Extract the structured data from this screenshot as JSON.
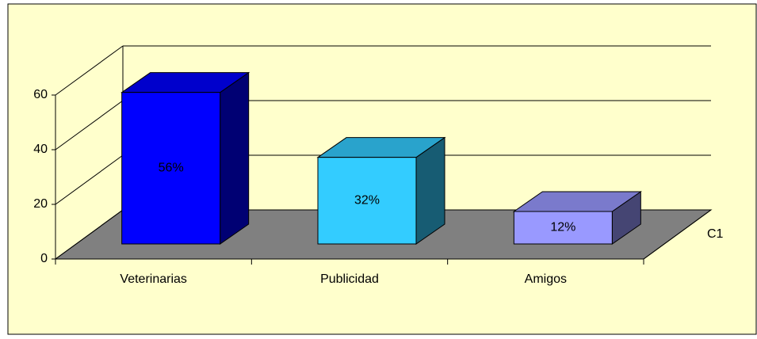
{
  "chart_data": {
    "type": "bar3d",
    "categories": [
      "Veterinarias",
      "Publicidad",
      "Amigos"
    ],
    "series": [
      {
        "name": "C1",
        "colors": [
          "#0000ff",
          "#33ccff",
          "#9999ff"
        ],
        "values": [
          56,
          32,
          12
        ],
        "value_labels": [
          "56%",
          "32%",
          "12%"
        ]
      }
    ],
    "ylim": [
      0,
      60
    ],
    "yticks": [
      0,
      20,
      40,
      60
    ],
    "grid": true
  }
}
